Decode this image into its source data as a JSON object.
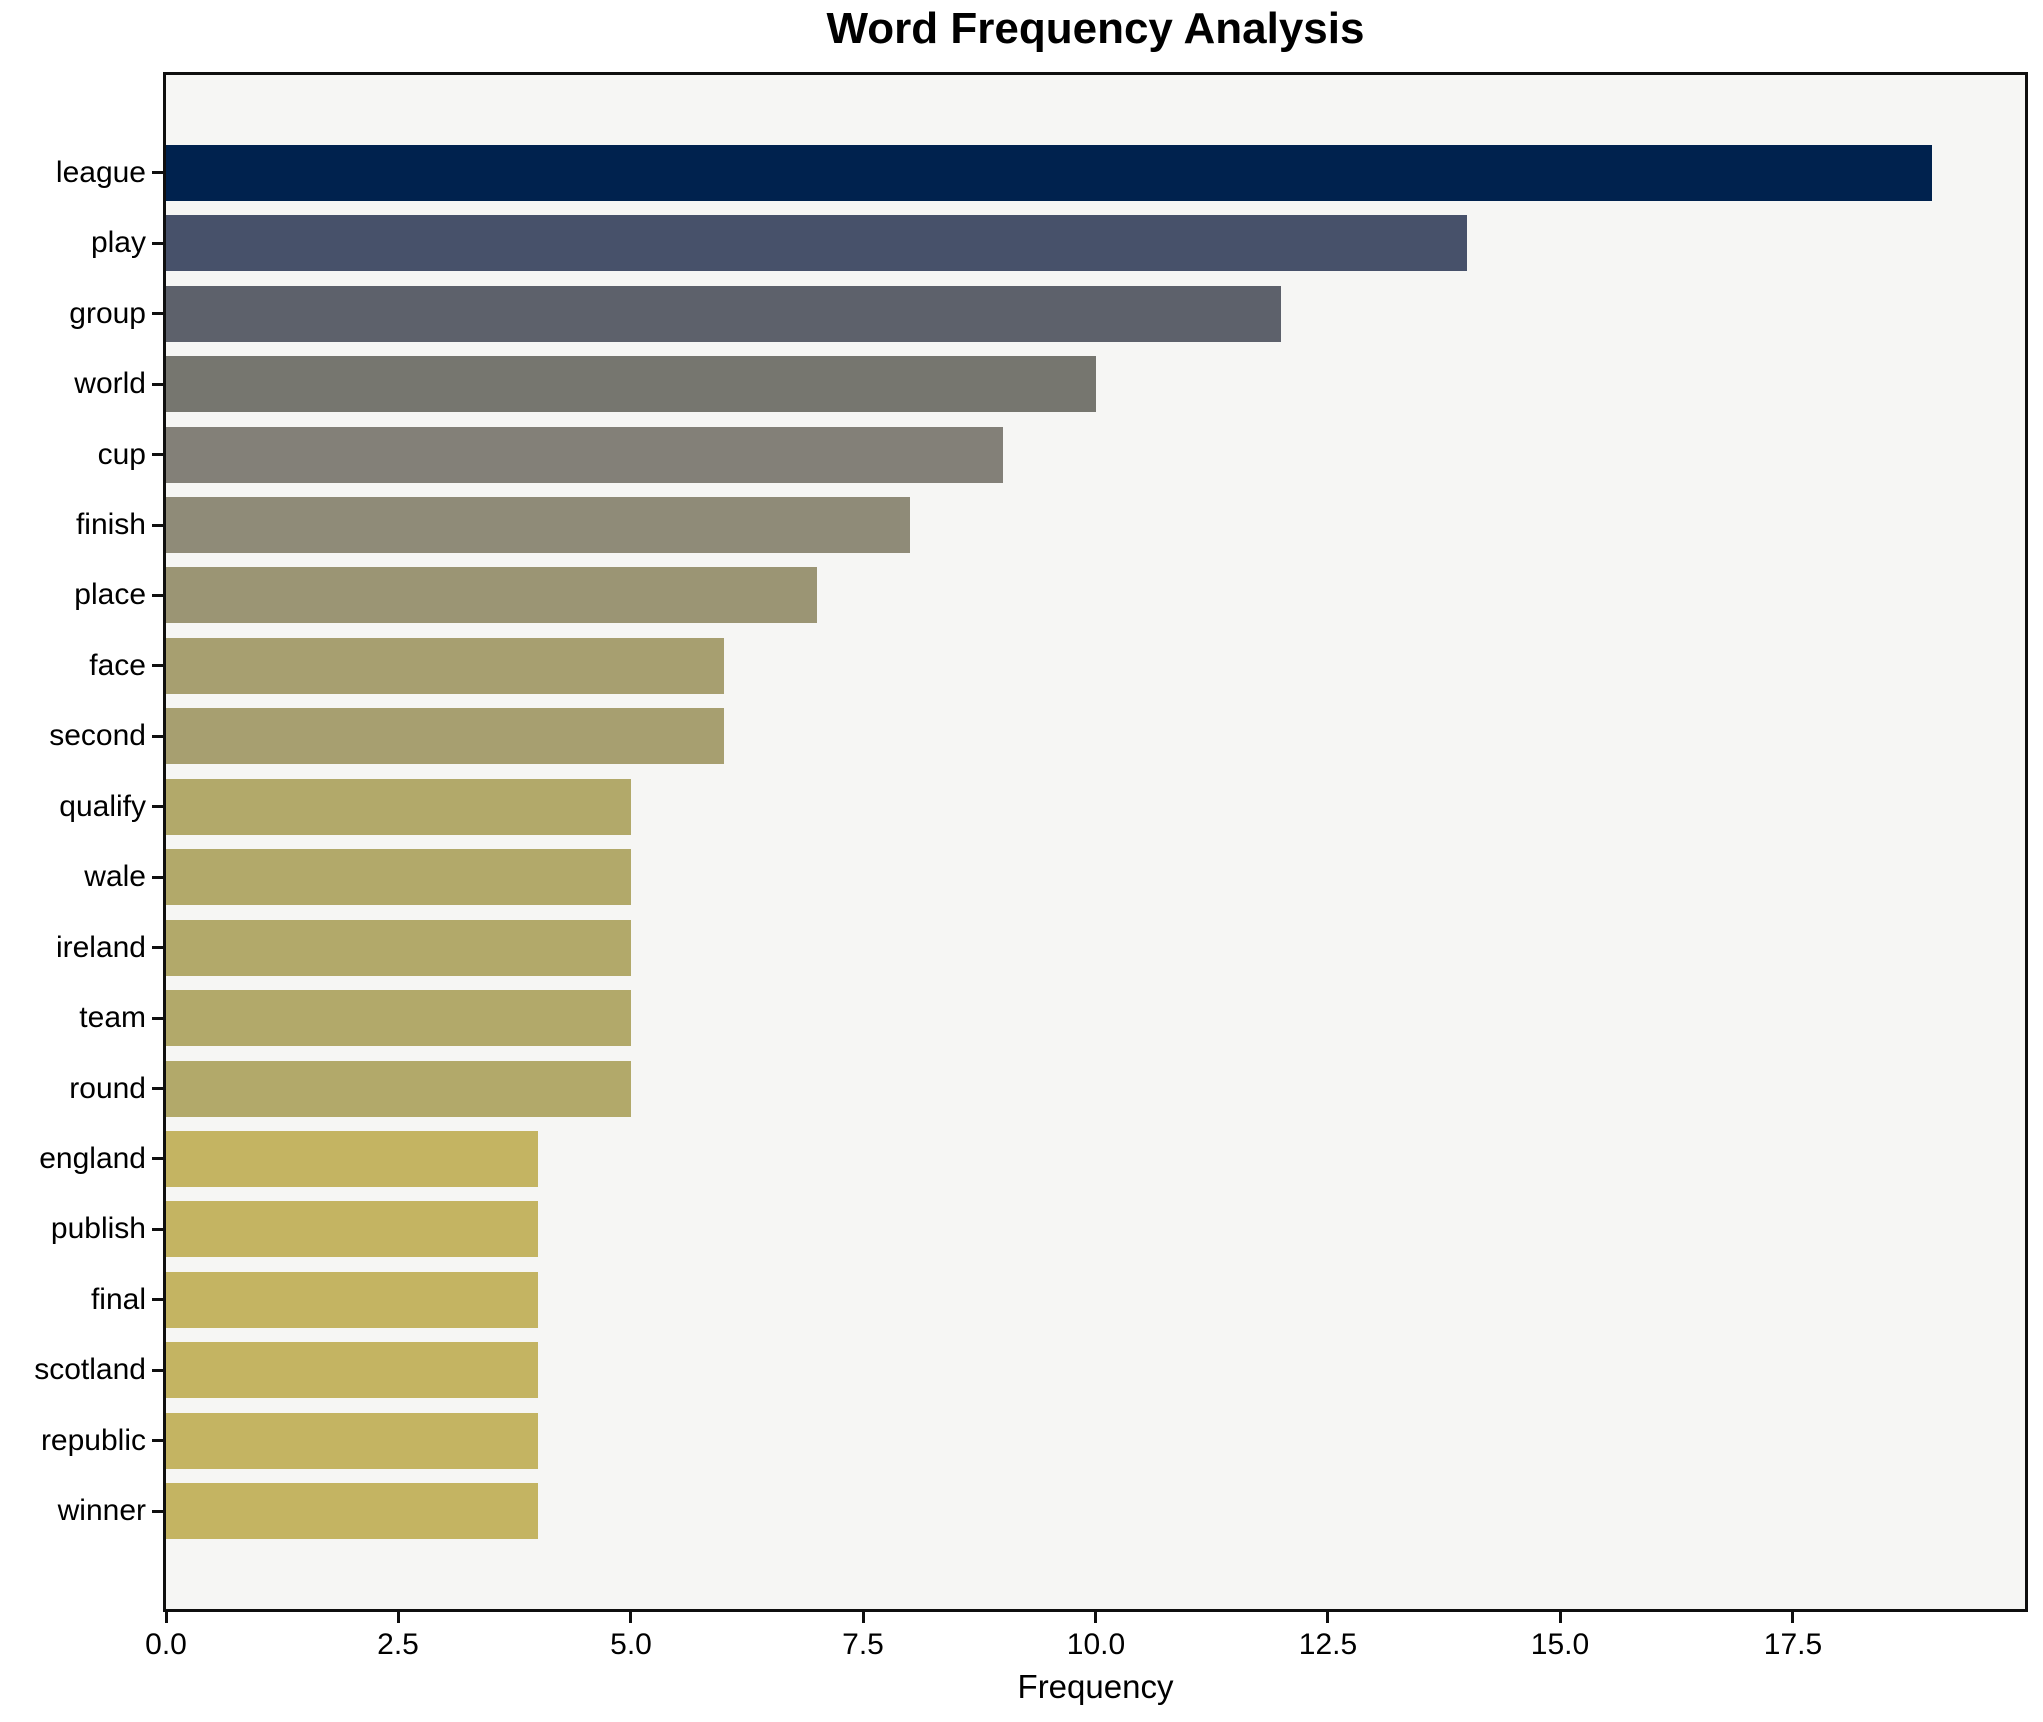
{
  "chart_data": {
    "type": "bar",
    "orientation": "horizontal",
    "title": "Word Frequency Analysis",
    "xlabel": "Frequency",
    "ylabel": "",
    "categories": [
      "league",
      "play",
      "group",
      "world",
      "cup",
      "finish",
      "place",
      "face",
      "second",
      "qualify",
      "wale",
      "ireland",
      "team",
      "round",
      "england",
      "publish",
      "final",
      "scotland",
      "republic",
      "winner"
    ],
    "values": [
      19,
      14,
      12,
      10,
      9,
      8,
      7,
      6,
      6,
      5,
      5,
      5,
      5,
      5,
      4,
      4,
      4,
      4,
      4,
      4
    ],
    "bar_colors": [
      "#00224e",
      "#47516a",
      "#5d616b",
      "#76766f",
      "#838078",
      "#8f8b78",
      "#9b9574",
      "#a79f70",
      "#a79f70",
      "#b2a96a",
      "#b2a96a",
      "#b2a96a",
      "#b2a96a",
      "#b2a96a",
      "#c4b462",
      "#c4b462",
      "#c4b462",
      "#c4b462",
      "#c4b462",
      "#c4b462"
    ],
    "xlim": [
      0,
      20
    ],
    "xticks": [
      0,
      2.5,
      5,
      7.5,
      10,
      12.5,
      15,
      17.5
    ],
    "xtick_labels": [
      "0.0",
      "2.5",
      "5.0",
      "7.5",
      "10.0",
      "12.5",
      "15.0",
      "17.5"
    ],
    "grid": false,
    "legend": false,
    "plot_bg": "#f6f6f4",
    "fig_bg": "#ffffff",
    "spine_color": "#0f0f0f",
    "colormap": "cividis-reversed"
  }
}
